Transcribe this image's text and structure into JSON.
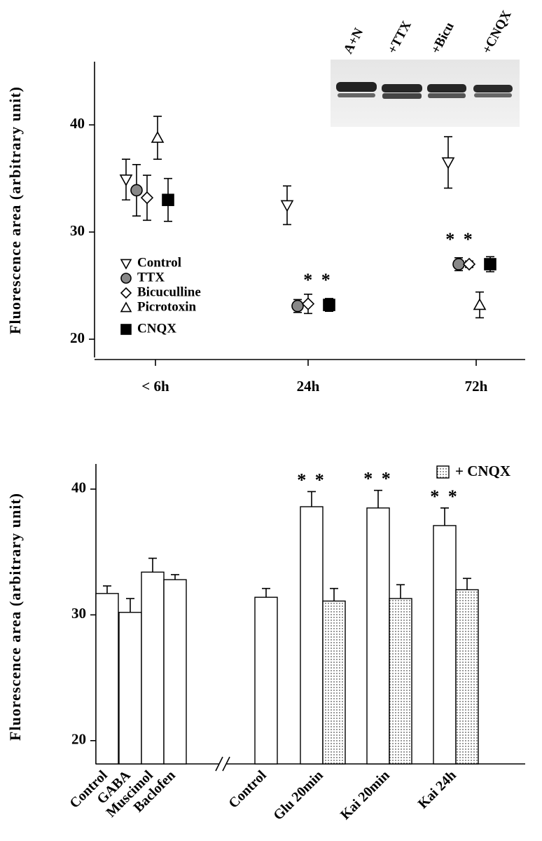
{
  "chart_data": [
    {
      "type": "scatter",
      "y_label": "Fluorescence area (arbitrary unit)",
      "categories": [
        "< 6h",
        "24h",
        "72h"
      ],
      "series": [
        {
          "name": "Control",
          "marker": "triangle-down",
          "color": "#ffffff",
          "values": [
            34.9,
            32.5,
            36.5
          ],
          "errors": [
            1.9,
            1.8,
            2.4
          ]
        },
        {
          "name": "TTX",
          "marker": "circle",
          "color": "#888888",
          "values": [
            33.9,
            23.1,
            27.0
          ],
          "errors": [
            2.4,
            0.6,
            0.6
          ]
        },
        {
          "name": "Bicuculline",
          "marker": "diamond",
          "color": "#ffffff",
          "values": [
            33.2,
            23.3,
            27.0
          ],
          "errors": [
            2.1,
            0.9,
            0.3
          ]
        },
        {
          "name": "Picrotoxin",
          "marker": "triangle-up",
          "color": "#ffffff",
          "values": [
            38.8,
            null,
            23.2
          ],
          "errors": [
            2.0,
            null,
            1.2
          ]
        },
        {
          "name": "CNQX",
          "marker": "square",
          "color": "#000000",
          "values": [
            33.0,
            23.2,
            27.0
          ],
          "errors": [
            2.0,
            0.6,
            0.7
          ]
        }
      ],
      "ylim": [
        18.3,
        45.9
      ],
      "yticks": [
        20,
        30,
        40
      ],
      "annotations": [
        "* *",
        "* *"
      ],
      "inset_labels": [
        "A+N",
        "+TTX",
        "+Bicu",
        "+CNQX"
      ]
    },
    {
      "type": "bar",
      "y_label": "Fluorescence area (arbitrary unit)",
      "categories": [
        "Control",
        "GABA",
        "Muscimol",
        "Baclofen",
        "Control",
        "Glu 20min",
        "Kai 20min",
        "Kai 24h"
      ],
      "series": [
        {
          "color": "#ffffff",
          "values": [
            31.7,
            30.2,
            33.4,
            32.8,
            31.4,
            38.6,
            38.5,
            37.1
          ],
          "errors": [
            0.6,
            1.1,
            1.1,
            0.4,
            0.7,
            1.2,
            1.4,
            1.4
          ]
        },
        {
          "name": "+ CNQX",
          "color": "#ffffff",
          "pattern": "dots",
          "values": [
            null,
            null,
            null,
            null,
            null,
            31.1,
            31.3,
            32.0
          ],
          "errors": [
            null,
            null,
            null,
            null,
            null,
            1.0,
            1.1,
            0.9
          ]
        }
      ],
      "ylim": [
        18.15,
        42
      ],
      "yticks": [
        20,
        30,
        40
      ],
      "annotations": [
        "* *",
        "* *",
        "* *"
      ]
    }
  ]
}
